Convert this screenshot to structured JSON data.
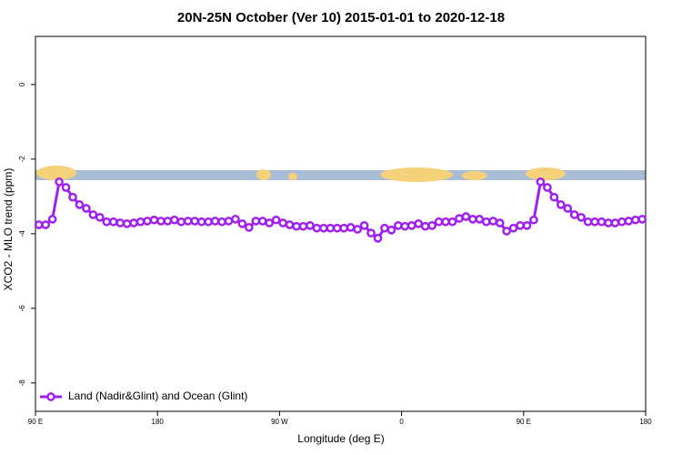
{
  "chart_data": {
    "type": "line",
    "title": "20N-25N October (Ver 10)   2015-01-01 to 2020-12-18",
    "x_label": "Longitude (deg E)",
    "y_label": "XCO2 - MLO trend (ppm)",
    "xlim": [
      90,
      540
    ],
    "ylim": [
      -8.76,
      1.29
    ],
    "xticks": [
      {
        "value": 90,
        "label": "90 E"
      },
      180,
      {
        "value": 270,
        "label": "90 W"
      },
      {
        "value": 360,
        "label": "0"
      },
      {
        "value": 450,
        "label": "90 E"
      },
      {
        "value": 540,
        "label": "180"
      }
    ],
    "yticks": [
      0,
      -2,
      -4,
      -6,
      -8
    ],
    "grid": false,
    "legend": "lower left",
    "x": [
      92.5,
      97.5,
      102.5,
      107.5,
      112.5,
      117.5,
      122.5,
      127.5,
      132.5,
      137.5,
      142.5,
      147.5,
      152.5,
      157.5,
      162.5,
      167.5,
      172.5,
      177.5,
      182.5,
      187.5,
      192.5,
      197.5,
      202.5,
      207.5,
      212.5,
      217.5,
      222.5,
      227.5,
      232.5,
      237.5,
      242.5,
      247.5,
      252.5,
      257.5,
      262.5,
      267.5,
      272.5,
      277.5,
      282.5,
      287.5,
      292.5,
      297.5,
      302.5,
      307.5,
      312.5,
      317.5,
      322.5,
      327.5,
      332.5,
      337.5,
      342.5,
      347.5,
      352.5,
      357.5,
      362.5,
      367.5,
      372.5,
      377.5,
      382.5,
      387.5,
      392.5,
      397.5,
      402.5,
      407.5,
      412.5,
      417.5,
      422.5,
      427.5,
      432.5,
      437.5,
      442.5,
      447.5,
      452.5,
      457.5,
      462.5,
      467.5,
      472.5,
      477.5,
      482.5,
      487.5,
      492.5,
      497.5,
      502.5,
      507.5,
      512.5,
      517.5,
      522.5,
      527.5,
      532.5,
      537.5
    ],
    "series": [
      {
        "name": "Land (Nadir&Glint) and Ocean (Glint)",
        "color": "#a020f0",
        "values": [
          -3.76,
          -3.76,
          -3.61,
          -2.61,
          -2.76,
          -3.02,
          -3.22,
          -3.32,
          -3.49,
          -3.56,
          -3.68,
          -3.68,
          -3.71,
          -3.73,
          -3.71,
          -3.68,
          -3.66,
          -3.63,
          -3.66,
          -3.66,
          -3.63,
          -3.68,
          -3.66,
          -3.66,
          -3.68,
          -3.68,
          -3.66,
          -3.68,
          -3.66,
          -3.61,
          -3.73,
          -3.83,
          -3.66,
          -3.66,
          -3.71,
          -3.63,
          -3.71,
          -3.76,
          -3.8,
          -3.8,
          -3.78,
          -3.85,
          -3.85,
          -3.85,
          -3.85,
          -3.85,
          -3.83,
          -3.88,
          -3.78,
          -3.98,
          -4.12,
          -3.85,
          -3.9,
          -3.78,
          -3.8,
          -3.78,
          -3.73,
          -3.8,
          -3.78,
          -3.68,
          -3.68,
          -3.68,
          -3.59,
          -3.54,
          -3.61,
          -3.61,
          -3.68,
          -3.66,
          -3.71,
          -3.93,
          -3.85,
          -3.78,
          -3.78,
          -3.63,
          -2.61,
          -2.76,
          -3.02,
          -3.22,
          -3.32,
          -3.49,
          -3.56,
          -3.68,
          -3.68,
          -3.68,
          -3.71,
          -3.71,
          -3.68,
          -3.66,
          -3.63,
          -3.61
        ]
      }
    ]
  }
}
